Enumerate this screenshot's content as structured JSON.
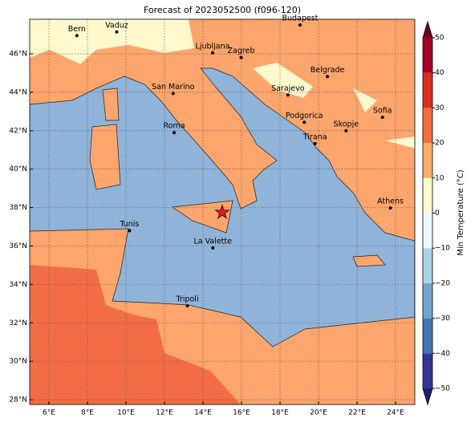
{
  "title": "Forecast of 2023052500 (f096-120)",
  "xlim": [
    5,
    25
  ],
  "ylim": [
    27.75,
    47.8
  ],
  "xticks": [
    {
      "value": 6,
      "label": "6°E"
    },
    {
      "value": 8,
      "label": "8°E"
    },
    {
      "value": 10,
      "label": "10°E"
    },
    {
      "value": 12,
      "label": "12°E"
    },
    {
      "value": 14,
      "label": "14°E"
    },
    {
      "value": 16,
      "label": "16°E"
    },
    {
      "value": 18,
      "label": "18°E"
    },
    {
      "value": 20,
      "label": "20°E"
    },
    {
      "value": 22,
      "label": "22°E"
    },
    {
      "value": 24,
      "label": "24°E"
    }
  ],
  "yticks": [
    {
      "value": 28,
      "label": "28°N"
    },
    {
      "value": 30,
      "label": "30°N"
    },
    {
      "value": 32,
      "label": "32°N"
    },
    {
      "value": 34,
      "label": "34°N"
    },
    {
      "value": 36,
      "label": "36°N"
    },
    {
      "value": 38,
      "label": "38°N"
    },
    {
      "value": 40,
      "label": "40°N"
    },
    {
      "value": 42,
      "label": "42°N"
    },
    {
      "value": 44,
      "label": "44°N"
    },
    {
      "value": 46,
      "label": "46°N"
    }
  ],
  "grid": true,
  "cities": [
    {
      "label": "Bern",
      "lon": 7.45,
      "lat": 46.95
    },
    {
      "label": "Vaduz",
      "lon": 9.52,
      "lat": 47.14
    },
    {
      "label": "Budapest",
      "lon": 19.04,
      "lat": 47.5
    },
    {
      "label": "Ljubljana",
      "lon": 14.5,
      "lat": 46.05
    },
    {
      "label": "Zagreb",
      "lon": 15.98,
      "lat": 45.81
    },
    {
      "label": "Belgrade",
      "lon": 20.46,
      "lat": 44.82
    },
    {
      "label": "San Marino",
      "lon": 12.45,
      "lat": 43.94
    },
    {
      "label": "Sarajevo",
      "lon": 18.41,
      "lat": 43.86
    },
    {
      "label": "Sofia",
      "lon": 23.32,
      "lat": 42.7
    },
    {
      "label": "Podgorica",
      "lon": 19.26,
      "lat": 42.44
    },
    {
      "label": "Skopje",
      "lon": 21.43,
      "lat": 42.0
    },
    {
      "label": "Roma",
      "lon": 12.5,
      "lat": 41.9
    },
    {
      "label": "Tirana",
      "lon": 19.82,
      "lat": 41.33
    },
    {
      "label": "Athens",
      "lon": 23.73,
      "lat": 37.98
    },
    {
      "label": "Tunis",
      "lon": 10.18,
      "lat": 36.8
    },
    {
      "label": "La Valette",
      "lon": 14.51,
      "lat": 35.9
    },
    {
      "label": "Tripoli",
      "lon": 13.19,
      "lat": 32.89
    }
  ],
  "star": {
    "lon": 15.0,
    "lat": 37.75,
    "color": "#e41a1c"
  },
  "colorbar": {
    "label": "Min Temperature (°C)",
    "lim": [
      -50,
      50
    ],
    "ticks": [
      {
        "value": -50,
        "label": "−50"
      },
      {
        "value": -40,
        "label": "−40"
      },
      {
        "value": -30,
        "label": "−30"
      },
      {
        "value": -20,
        "label": "−20"
      },
      {
        "value": -10,
        "label": "−10"
      },
      0,
      10,
      20,
      30,
      40,
      50
    ],
    "colors": [
      "#313695",
      "#4575b4",
      "#74a5cf",
      "#abd3e6",
      "#f0f8fb",
      "#fffbd0",
      "#fdae6b",
      "#f46d43",
      "#d7301f",
      "#a50026"
    ],
    "under_color": "#1f1f6e",
    "over_color": "#67001f"
  }
}
